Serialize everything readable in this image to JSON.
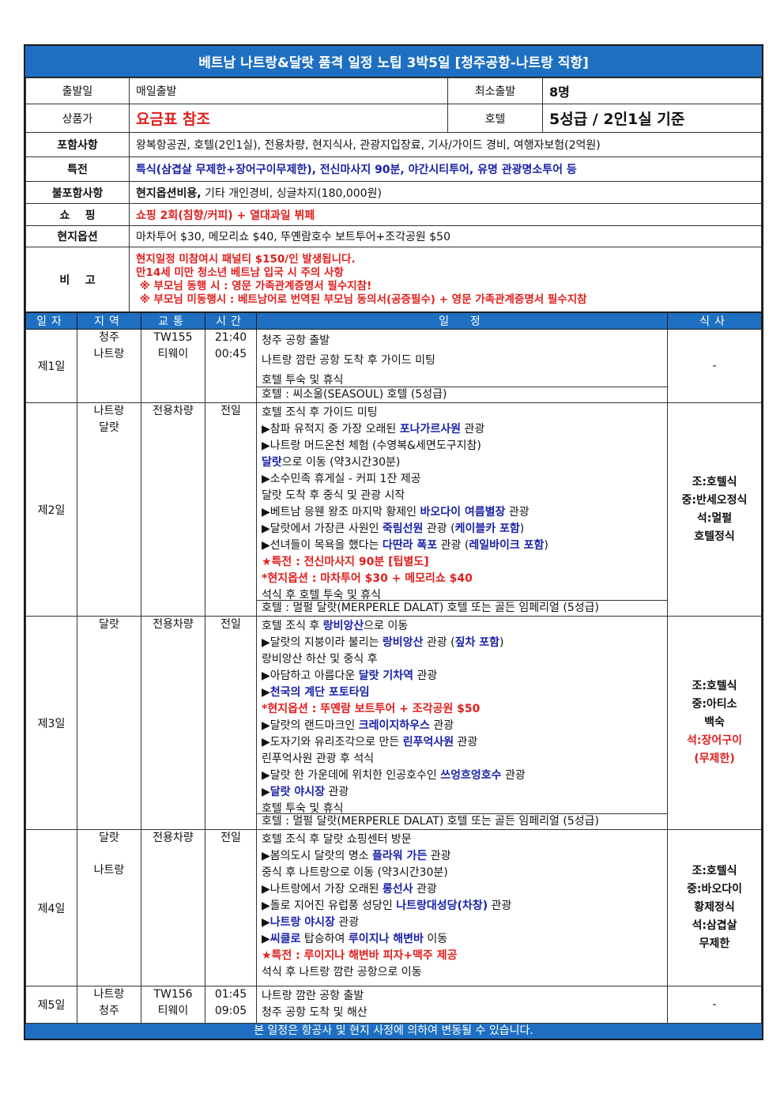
{
  "title": "베트남 나트랑&달랏 품격 일정 노팁 3박5일 [청주공항-나트랑 직항]",
  "info": {
    "departure_label": "출발일",
    "departure": "매일출발",
    "min_label": "최소출발",
    "min": "8명",
    "price_label": "상품가",
    "price": "요금표 참조",
    "hotel_label": "호텔",
    "hotel": "5성급 / 2인1실 기준",
    "included_label": "포함사항",
    "included": "왕복항공권, 호텔(2인1실), 전용차량, 현지식사, 관광지입장료, 기사/가이드 경비, 여행자보험(2억원)",
    "benefit_label": "특전",
    "benefit": "특식(삼겹살 무제한+장어구이무제한), 전신마사지 90분, 야간시티투어, 유명 관광명소투어 등",
    "excluded_label": "불포함사항",
    "excluded_bold": "현지옵션비용,",
    "excluded": " 기타 개인경비, 싱글차지(180,000원)",
    "shopping_label": "쇼    핑",
    "shopping": "쇼핑 2회(침향/커피) + 열대과일 뷔페",
    "options_label": "현지옵션",
    "options": "마차투어 $30, 메모리쇼 $40, 뚜옌람호수 보트투어+조각공원 $50",
    "note_label": "비    고",
    "notes": [
      "현지일정 미참여시 패널티 $150/인 발생됩니다.",
      "만14세 미만 청소년 베트남 입국 시 주의 사항",
      " ※ 부모님 동행 시 : 영문 가족관계증명서 필수지참!",
      " ※ 부모님 미동행시 : 베트남어로 번역된 부모님 동의서(공증필수) + 영문 가족관계증명서 필수지참"
    ]
  },
  "columns": [
    "일자",
    "지역",
    "교통",
    "시간",
    "일  정",
    "식사"
  ],
  "days": [
    {
      "day": "제1일",
      "region": [
        "청주",
        "나트랑"
      ],
      "transport": [
        "TW155",
        "티웨이"
      ],
      "time": [
        "21:40",
        "00:45"
      ],
      "lines": [
        [
          {
            "t": "청주 공항 출발"
          }
        ],
        [
          {
            "t": "나트랑 깜란 공항 도착 후 가이드 미팅"
          }
        ],
        [
          {
            "t": "호텔 투숙 및 휴식"
          }
        ]
      ],
      "hotel": "호텔 : 씨소울(SEASOUL) 호텔 (5성급)",
      "meals": [
        {
          "t": "-"
        }
      ]
    },
    {
      "day": "제2일",
      "region": [
        "나트랑",
        "달랏"
      ],
      "transport": [
        "전용차량"
      ],
      "time": [
        "전일"
      ],
      "lines": [
        [
          {
            "t": "호텔 조식 후 가이드 미팅"
          }
        ],
        [
          {
            "t": "▶참파 유적지 중 가장 오래된 "
          },
          {
            "t": "포나가르사원",
            "c": "b"
          },
          {
            "t": " 관광"
          }
        ],
        [
          {
            "t": "▶나트랑 머드온천 체험 (수영복&세면도구지참)"
          }
        ],
        [
          {
            "t": "달랏",
            "c": "b"
          },
          {
            "t": "으로 이동 (약3시간30분)"
          }
        ],
        [
          {
            "t": "▶소수민족 휴게실 - 커피 1잔 제공"
          }
        ],
        [
          {
            "t": "달랏 도착 후 중식 및 관광 시작"
          }
        ],
        [
          {
            "t": "▶베트남 응웬 왕조 마지막 황제인 "
          },
          {
            "t": "바오다이 여름별장",
            "c": "b"
          },
          {
            "t": " 관광"
          }
        ],
        [
          {
            "t": "▶달랏에서 가장큰 사원인 "
          },
          {
            "t": "죽림선원",
            "c": "b"
          },
          {
            "t": " 관광 ("
          },
          {
            "t": "케이블카 포함",
            "c": "b"
          },
          {
            "t": ")"
          }
        ],
        [
          {
            "t": "▶선녀들이 목욕을 했다는 "
          },
          {
            "t": "다딴라 폭포",
            "c": "b"
          },
          {
            "t": " 관광 ("
          },
          {
            "t": "레일바이크 포함",
            "c": "b"
          },
          {
            "t": ")"
          }
        ],
        [
          {
            "t": "★특전 : 전신마사지 90분 [팁별도]",
            "c": "r"
          }
        ],
        [
          {
            "t": "*현지옵션 : 마차투어 $30 + 메모리쇼 $40",
            "c": "r"
          }
        ],
        [
          {
            "t": "석식 후 호텔 투숙 및 휴식"
          }
        ]
      ],
      "hotel": "호텔 : 멀펄 달랏(MERPERLE DALAT) 호텔 또는 골든 임페리얼 (5성급)",
      "meals": [
        {
          "t": "조:호텔식"
        },
        {
          "t": "중:반세오정식"
        },
        {
          "t": "석:멀펄"
        },
        {
          "t": "호텔정식"
        }
      ]
    },
    {
      "day": "제3일",
      "region": [
        "달랏"
      ],
      "transport": [
        "전용차량"
      ],
      "time": [
        "전일"
      ],
      "lines": [
        [
          {
            "t": "호텔 조식 후 "
          },
          {
            "t": "랑비앙산",
            "c": "b"
          },
          {
            "t": "으로 이동"
          }
        ],
        [
          {
            "t": "▶달랏의 지붕이라 불리는 "
          },
          {
            "t": "랑비앙산",
            "c": "b"
          },
          {
            "t": " 관광 ("
          },
          {
            "t": "짚차 포함",
            "c": "b"
          },
          {
            "t": ")"
          }
        ],
        [
          {
            "t": "랑비앙산 하산 및 중식 후"
          }
        ],
        [
          {
            "t": "▶아담하고 아름다운 "
          },
          {
            "t": "달랏 기차역",
            "c": "b"
          },
          {
            "t": " 관광"
          }
        ],
        [
          {
            "t": "▶"
          },
          {
            "t": "천국의 계단 포토타임",
            "c": "b"
          }
        ],
        [
          {
            "t": "*현지옵션 : 뚜옌람 보트투어 + 조각공원 $50",
            "c": "r"
          }
        ],
        [
          {
            "t": "▶달랏의 랜드마크인 "
          },
          {
            "t": "크레이지하우스",
            "c": "b"
          },
          {
            "t": " 관광"
          }
        ],
        [
          {
            "t": "▶도자기와 유리조각으로 만든 "
          },
          {
            "t": "린푸억사원",
            "c": "b"
          },
          {
            "t": " 관광"
          }
        ],
        [
          {
            "t": "린푸억사원 관광 후 석식"
          }
        ],
        [
          {
            "t": "▶달랏 한 가운데에 위치한 인공호수인 "
          },
          {
            "t": "쓰엉흐엉호수",
            "c": "b"
          },
          {
            "t": " 관광"
          }
        ],
        [
          {
            "t": "▶"
          },
          {
            "t": "달랏 야시장",
            "c": "b"
          },
          {
            "t": " 관광"
          }
        ],
        [
          {
            "t": "호텔 투숙 및 휴식"
          }
        ]
      ],
      "hotel": "호텔 : 멀펄 달랏(MERPERLE DALAT) 호텔 또는 골든 임페리얼 (5성급)",
      "meals": [
        {
          "t": "조:호텔식"
        },
        {
          "t": "중:아티소"
        },
        {
          "t": "백숙"
        },
        {
          "t": "석:장어구이",
          "c": "r"
        },
        {
          "t": "(무제한)",
          "c": "r"
        }
      ]
    },
    {
      "day": "제4일",
      "region": [
        "달랏",
        "나트랑"
      ],
      "transport": [
        "전용차량"
      ],
      "time": [
        "전일"
      ],
      "lines": [
        [
          {
            "t": "호텔 조식 후 달랏 쇼핑센터 방문"
          }
        ],
        [
          {
            "t": "▶봄의도시 달랏의 명소 "
          },
          {
            "t": "플라워 가든",
            "c": "b"
          },
          {
            "t": " 관광"
          }
        ],
        [
          {
            "t": "중식 후 나트랑으로 이동 (약3시간30분)"
          }
        ],
        [
          {
            "t": "▶나트랑에서 가장 오래된 "
          },
          {
            "t": "롱선사",
            "c": "b"
          },
          {
            "t": " 관광"
          }
        ],
        [
          {
            "t": "▶돌로 지어진 유럽풍 성당인 "
          },
          {
            "t": "나트랑대성당(차창)",
            "c": "b"
          },
          {
            "t": " 관광"
          }
        ],
        [
          {
            "t": "▶"
          },
          {
            "t": "나트랑 야시장",
            "c": "b"
          },
          {
            "t": " 관광"
          }
        ],
        [
          {
            "t": "▶"
          },
          {
            "t": "씨클로",
            "c": "b"
          },
          {
            "t": " 탑승하여 "
          },
          {
            "t": "루이지나 해변바",
            "c": "b"
          },
          {
            "t": " 이동"
          }
        ],
        [
          {
            "t": "★특전 : 루이지나 해변바 피자+맥주 제공",
            "c": "r"
          }
        ],
        [
          {
            "t": "석식 후 나트랑 깜란 공항으로 이동"
          }
        ]
      ],
      "meals": [
        {
          "t": "조:호텔식"
        },
        {
          "t": "중:바오다이"
        },
        {
          "t": "황제정식"
        },
        {
          "t": "석:삼겹살"
        },
        {
          "t": "무제한"
        }
      ]
    },
    {
      "day": "제5일",
      "region": [
        "나트랑",
        "청주"
      ],
      "transport": [
        "TW156",
        "티웨이"
      ],
      "time": [
        "01:45",
        "09:05"
      ],
      "lines": [
        [
          {
            "t": "나트랑 깜란 공항 출발"
          }
        ],
        [
          {
            "t": "청주 공항 도착 및 해산"
          }
        ]
      ],
      "meals": [
        {
          "t": "-"
        }
      ]
    }
  ],
  "footer": "본 일정은 항공사 및 현지 사정에 의하여 변동될 수 있습니다.",
  "colors": {
    "header_blue": "#1e6fc1",
    "text_blue": "#1a22a8",
    "text_red": "#e0201e"
  }
}
